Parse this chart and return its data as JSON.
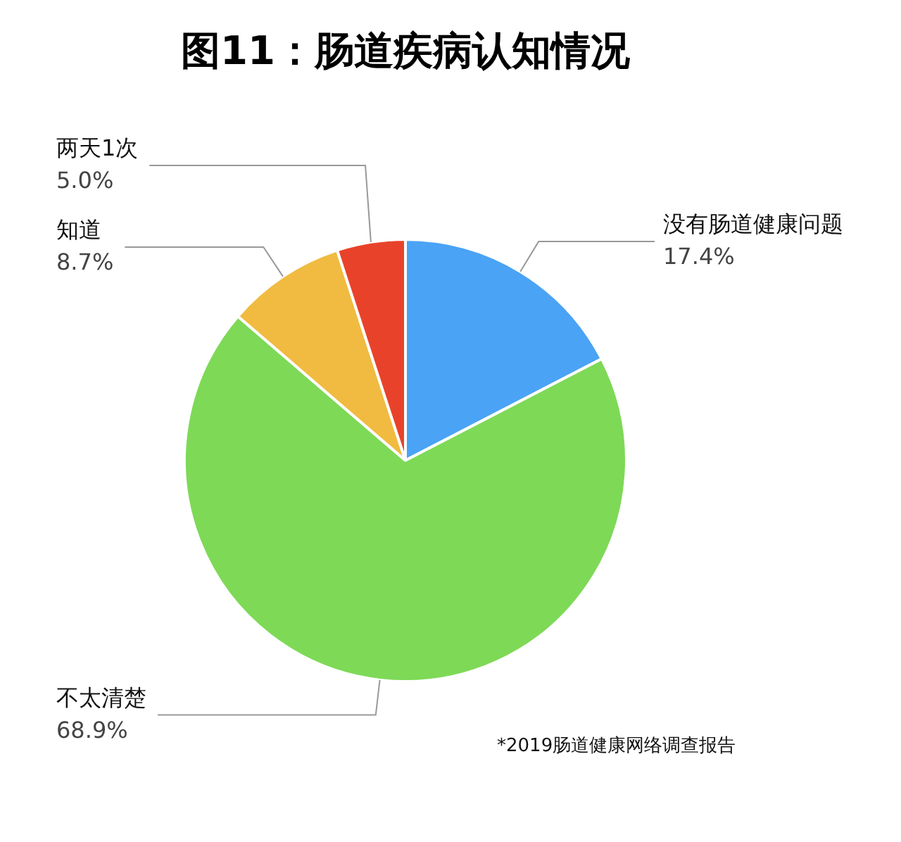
{
  "chart_data": {
    "type": "pie",
    "title": "图11：肠道疾病认知情况",
    "categories": [
      "没有肠道健康问题",
      "不太清楚",
      "知道",
      "两天1次"
    ],
    "values": [
      17.4,
      68.9,
      8.7,
      5.0
    ],
    "value_labels": [
      "17.4%",
      "68.9%",
      "8.7%",
      "5.0%"
    ],
    "colors": [
      "#4aa3f5",
      "#7ed957",
      "#f0bb40",
      "#e8432a"
    ],
    "legend": false,
    "annotations": [
      "*2019肠道健康网络调查报告"
    ]
  }
}
